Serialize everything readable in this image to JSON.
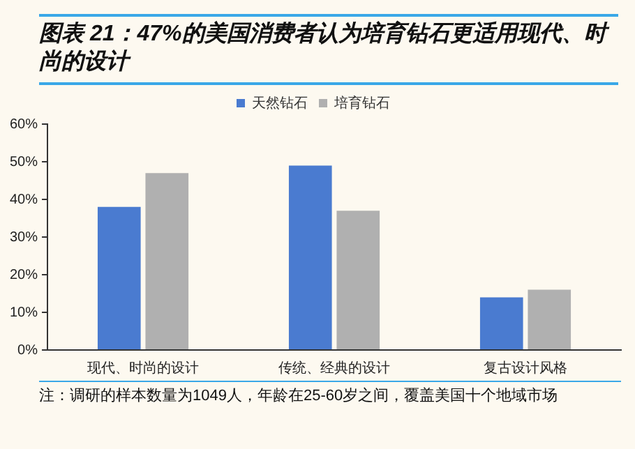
{
  "chart_data": {
    "type": "bar",
    "title": "图表 21：47%的美国消费者认为培育钻石更适用现代、时尚的设计",
    "categories": [
      "现代、时尚的设计",
      "传统、经典的设计",
      "复古设计风格"
    ],
    "series": [
      {
        "name": "天然钻石",
        "color": "#4a7bd0",
        "values": [
          38,
          49,
          14
        ]
      },
      {
        "name": "培育钻石",
        "color": "#b0b0b0",
        "values": [
          47,
          37,
          16
        ]
      }
    ],
    "ylim": [
      0,
      60
    ],
    "yticks": [
      {
        "value": 0,
        "label": "0%"
      },
      {
        "value": 10,
        "label": "10%"
      },
      {
        "value": 20,
        "label": "20%"
      },
      {
        "value": 30,
        "label": "30%"
      },
      {
        "value": 40,
        "label": "40%"
      },
      {
        "value": 50,
        "label": "50%"
      },
      {
        "value": 60,
        "label": "60%"
      }
    ],
    "grid": false,
    "legend": "top",
    "annotations": [
      "注：调研的样本数量为1049人，年龄在25-60岁之间，覆盖美国十个地域市场"
    ]
  }
}
